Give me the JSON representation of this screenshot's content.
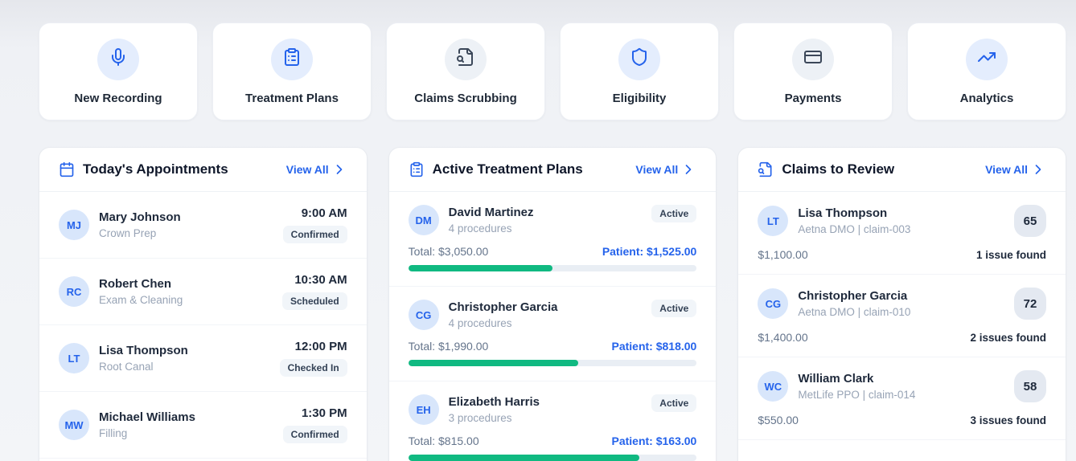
{
  "colors": {
    "accent_blue": "#2563eb",
    "progress_green": "#10b981",
    "slate_icon": "#3b4759",
    "avatar_bg": "#d8e6fb"
  },
  "quick_actions": [
    {
      "label": "New Recording",
      "icon": "microphone-icon",
      "variant": "blue"
    },
    {
      "label": "Treatment Plans",
      "icon": "clipboard-icon",
      "variant": "blue"
    },
    {
      "label": "Claims Scrubbing",
      "icon": "file-search-icon",
      "variant": "slate"
    },
    {
      "label": "Eligibility",
      "icon": "shield-icon",
      "variant": "blue"
    },
    {
      "label": "Payments",
      "icon": "credit-card-icon",
      "variant": "slate"
    },
    {
      "label": "Analytics",
      "icon": "trending-up-icon",
      "variant": "blue"
    }
  ],
  "appointments_panel": {
    "title": "Today's Appointments",
    "icon": "calendar-icon",
    "view_all_label": "View All",
    "items": [
      {
        "initials": "MJ",
        "name": "Mary Johnson",
        "procedure": "Crown Prep",
        "time": "9:00 AM",
        "status": "Confirmed"
      },
      {
        "initials": "RC",
        "name": "Robert Chen",
        "procedure": "Exam & Cleaning",
        "time": "10:30 AM",
        "status": "Scheduled"
      },
      {
        "initials": "LT",
        "name": "Lisa Thompson",
        "procedure": "Root Canal",
        "time": "12:00 PM",
        "status": "Checked In"
      },
      {
        "initials": "MW",
        "name": "Michael Williams",
        "procedure": "Filling",
        "time": "1:30 PM",
        "status": "Confirmed"
      }
    ]
  },
  "treatment_plans_panel": {
    "title": "Active Treatment Plans",
    "icon": "clipboard-icon",
    "view_all_label": "View All",
    "items": [
      {
        "initials": "DM",
        "name": "David Martinez",
        "procedures": "4 procedures",
        "status": "Active",
        "total_label": "Total: $3,050.00",
        "patient_label": "Patient: $1,525.00",
        "progress_pct": 50
      },
      {
        "initials": "CG",
        "name": "Christopher Garcia",
        "procedures": "4 procedures",
        "status": "Active",
        "total_label": "Total: $1,990.00",
        "patient_label": "Patient: $818.00",
        "progress_pct": 59
      },
      {
        "initials": "EH",
        "name": "Elizabeth Harris",
        "procedures": "3 procedures",
        "status": "Active",
        "total_label": "Total: $815.00",
        "patient_label": "Patient: $163.00",
        "progress_pct": 80
      }
    ]
  },
  "claims_panel": {
    "title": "Claims to Review",
    "icon": "file-search-icon",
    "view_all_label": "View All",
    "items": [
      {
        "initials": "LT",
        "name": "Lisa Thompson",
        "detail": "Aetna DMO | claim-003",
        "score": "65",
        "amount": "$1,100.00",
        "issues": "1 issue found"
      },
      {
        "initials": "CG",
        "name": "Christopher Garcia",
        "detail": "Aetna DMO | claim-010",
        "score": "72",
        "amount": "$1,400.00",
        "issues": "2 issues found"
      },
      {
        "initials": "WC",
        "name": "William Clark",
        "detail": "MetLife PPO | claim-014",
        "score": "58",
        "amount": "$550.00",
        "issues": "3 issues found"
      }
    ]
  }
}
